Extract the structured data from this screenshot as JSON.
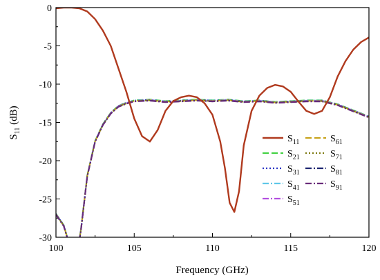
{
  "chart_data": {
    "type": "line",
    "xlabel": "Frequency (GHz)",
    "ylabel": {
      "base": "S",
      "sub": "11",
      "unit": " (dB)"
    },
    "xlim": [
      100,
      120
    ],
    "ylim": [
      -30,
      0
    ],
    "xticks": [
      100,
      105,
      110,
      115,
      120
    ],
    "yticks": [
      0,
      -5,
      -10,
      -15,
      -20,
      -25,
      -30
    ],
    "grid": false,
    "legend_position": "right",
    "series": [
      {
        "name": "S11",
        "label_base": "S",
        "label_sub": "11",
        "color": "#b03a1e",
        "style": "solid",
        "x": [
          100,
          100.5,
          101,
          101.5,
          102,
          102.5,
          103,
          103.5,
          104,
          104.5,
          105,
          105.5,
          106,
          106.5,
          107,
          107.5,
          108,
          108.5,
          109,
          109.5,
          110,
          110.5,
          110.8,
          111.1,
          111.4,
          111.7,
          112,
          112.5,
          113,
          113.5,
          114,
          114.5,
          115,
          115.5,
          116,
          116.5,
          117,
          117.5,
          118,
          118.5,
          119,
          119.5,
          120
        ],
        "y": [
          -0.1,
          0,
          0,
          -0.1,
          -0.5,
          -1.5,
          -3.0,
          -5.0,
          -8.0,
          -11.0,
          -14.5,
          -16.8,
          -17.5,
          -16.0,
          -13.5,
          -12.2,
          -11.7,
          -11.5,
          -11.7,
          -12.5,
          -14.0,
          -17.5,
          -21.0,
          -25.5,
          -26.7,
          -24.0,
          -18.0,
          -13.5,
          -11.5,
          -10.5,
          -10.1,
          -10.3,
          -11.0,
          -12.3,
          -13.5,
          -13.9,
          -13.5,
          -11.7,
          -9.0,
          -7.0,
          -5.5,
          -4.5,
          -3.9
        ]
      },
      {
        "name": "S21",
        "label_base": "S",
        "label_sub": "21",
        "color": "#43d143",
        "style": "dash"
      },
      {
        "name": "S31",
        "label_base": "S",
        "label_sub": "31",
        "color": "#2a35c4",
        "style": "dot"
      },
      {
        "name": "S41",
        "label_base": "S",
        "label_sub": "41",
        "color": "#5fc7e8",
        "style": "dashdot"
      },
      {
        "name": "S51",
        "label_base": "S",
        "label_sub": "51",
        "color": "#b24fe0",
        "style": "dashdot"
      },
      {
        "name": "S61",
        "label_base": "S",
        "label_sub": "61",
        "color": "#c7a21a",
        "style": "dash"
      },
      {
        "name": "S71",
        "label_base": "S",
        "label_sub": "71",
        "color": "#7d7a10",
        "style": "dot"
      },
      {
        "name": "S81",
        "label_base": "S",
        "label_sub": "81",
        "color": "#1c2470",
        "style": "dashdot"
      },
      {
        "name": "S91",
        "label_base": "S",
        "label_sub": "91",
        "color": "#6a2c7a",
        "style": "dashdot"
      }
    ],
    "transmission_curve": {
      "x": [
        100,
        100.5,
        101,
        101.3,
        101.6,
        102,
        102.5,
        103,
        103.5,
        104,
        104.5,
        105,
        106,
        107,
        108,
        109,
        110,
        111,
        112,
        113,
        114,
        115,
        116,
        117,
        118,
        119,
        120
      ],
      "y": [
        -27,
        -28.5,
        -32,
        -33,
        -29,
        -22,
        -17.5,
        -15.3,
        -13.8,
        -12.9,
        -12.5,
        -12.2,
        -12.1,
        -12.3,
        -12.2,
        -12.1,
        -12.2,
        -12.1,
        -12.3,
        -12.2,
        -12.4,
        -12.3,
        -12.2,
        -12.2,
        -12.7,
        -13.5,
        -14.3
      ]
    }
  }
}
